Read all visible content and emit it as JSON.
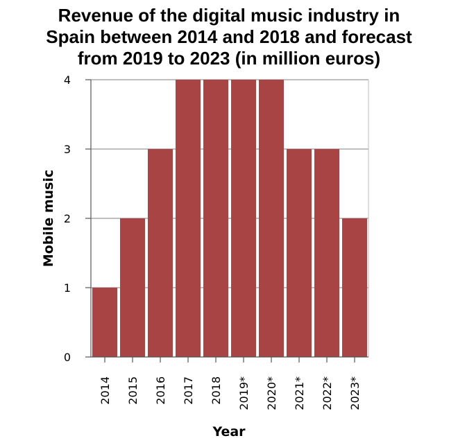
{
  "chart_data": {
    "type": "bar",
    "title_lines": [
      "Revenue of the digital music industry in",
      "Spain between 2014 and 2018 and forecast",
      "from 2019 to 2023 (in million euros)"
    ],
    "xlabel": "Year",
    "ylabel": "Mobile music",
    "categories": [
      "2014",
      "2015",
      "2016",
      "2017",
      "2018",
      "2019*",
      "2020*",
      "2021*",
      "2022*",
      "2023*"
    ],
    "values": [
      1,
      2,
      3,
      4,
      4,
      4,
      4,
      3,
      3,
      2
    ],
    "ylim": [
      0,
      4
    ],
    "yticks": [
      0,
      1,
      2,
      3,
      4
    ],
    "grid": true,
    "bar_color": "#a84444",
    "grid_color": "#999999"
  }
}
